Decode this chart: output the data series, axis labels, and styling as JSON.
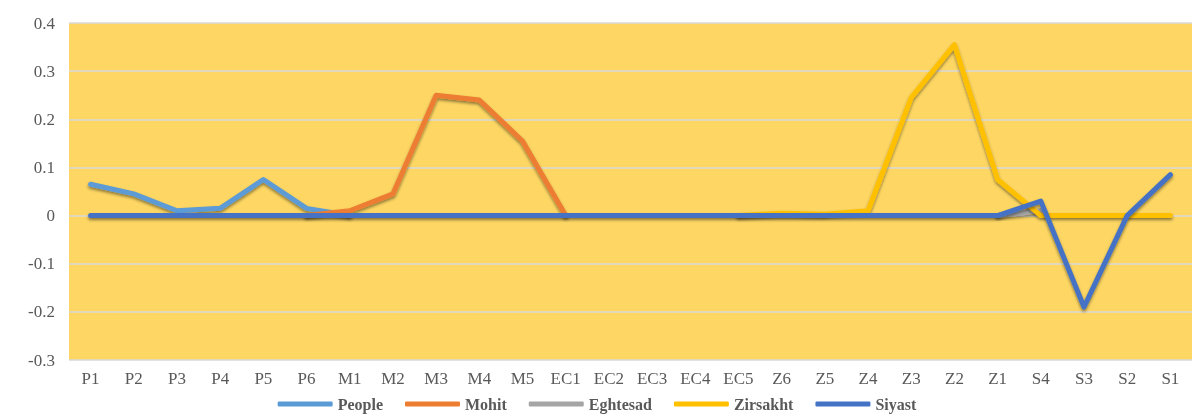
{
  "chart_data": {
    "type": "line",
    "categories": [
      "P1",
      "P2",
      "P3",
      "P4",
      "P5",
      "P6",
      "M1",
      "M2",
      "M3",
      "M4",
      "M5",
      "EC1",
      "EC2",
      "EC3",
      "EC4",
      "EC5",
      "Z6",
      "Z5",
      "Z4",
      "Z3",
      "Z2",
      "Z1",
      "S4",
      "S3",
      "S2",
      "S1"
    ],
    "series": [
      {
        "name": "People",
        "color": "#5b9bd5",
        "values": [
          0.065,
          0.045,
          0.01,
          0.015,
          0.075,
          0.015,
          0,
          null,
          null,
          null,
          null,
          null,
          null,
          null,
          null,
          null,
          null,
          null,
          null,
          null,
          null,
          null,
          null,
          null,
          null,
          null
        ]
      },
      {
        "name": "Mohit",
        "color": "#ed7d31",
        "values": [
          null,
          null,
          null,
          null,
          null,
          0,
          0.01,
          0.045,
          0.25,
          0.24,
          0.155,
          0,
          null,
          null,
          null,
          null,
          null,
          null,
          null,
          null,
          null,
          null,
          null,
          null,
          null,
          null
        ]
      },
      {
        "name": "Eghtesad",
        "color": "#a5a5a5",
        "values": [
          null,
          null,
          null,
          null,
          null,
          null,
          null,
          null,
          null,
          null,
          null,
          null,
          null,
          null,
          null,
          null,
          null,
          null,
          null,
          null,
          null,
          0,
          0.01,
          null,
          null,
          null
        ]
      },
      {
        "name": "Zirsakht",
        "color": "#ffc000",
        "values": [
          null,
          null,
          null,
          null,
          null,
          null,
          null,
          null,
          null,
          null,
          null,
          null,
          null,
          null,
          null,
          0,
          0.005,
          0.003,
          0.01,
          0.245,
          0.355,
          0.075,
          0,
          0,
          0,
          0
        ]
      },
      {
        "name": "Siyast",
        "color": "#4472c4",
        "values": [
          0,
          0,
          0,
          0,
          0,
          0,
          0,
          0,
          0,
          0,
          0,
          0,
          0,
          0,
          0,
          0,
          0,
          0,
          0,
          0,
          0,
          0,
          0.03,
          -0.19,
          0,
          0.085
        ]
      }
    ],
    "ylim": [
      -0.3,
      0.4
    ],
    "yticks": [
      -0.3,
      -0.2,
      -0.1,
      0,
      0.1,
      0.2,
      0.3,
      0.4
    ],
    "grid": "y",
    "legend": "bottom",
    "marker": "none",
    "line_style": "solid"
  }
}
